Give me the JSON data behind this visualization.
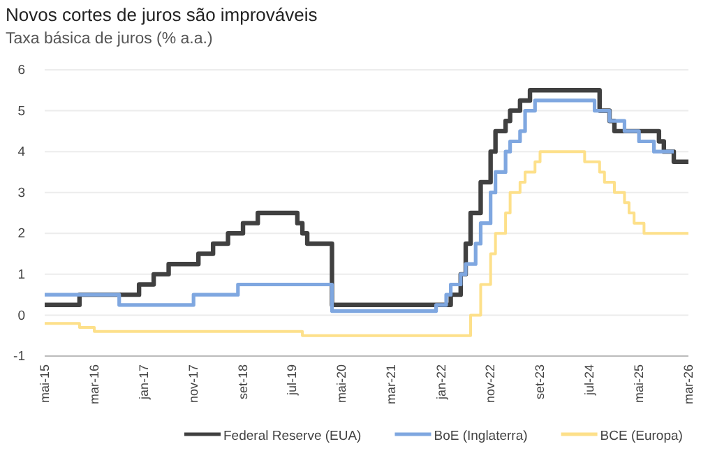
{
  "chart_data": {
    "type": "step",
    "title": "Novos cortes de juros são improváveis",
    "subtitle": "Taxa básica de juros (% a.a.)",
    "xlim": [
      "2015-05",
      "2026-03"
    ],
    "xticks": [
      {
        "value": "2015-05",
        "label": "mai-15"
      },
      {
        "value": "2016-03",
        "label": "mar-16"
      },
      {
        "value": "2017-01",
        "label": "jan-17"
      },
      {
        "value": "2017-11",
        "label": "nov-17"
      },
      {
        "value": "2018-09",
        "label": "set-18"
      },
      {
        "value": "2019-07",
        "label": "jul-19"
      },
      {
        "value": "2020-05",
        "label": "mai-20"
      },
      {
        "value": "2021-03",
        "label": "mar-21"
      },
      {
        "value": "2022-01",
        "label": "jan-22"
      },
      {
        "value": "2022-11",
        "label": "nov-22"
      },
      {
        "value": "2023-09",
        "label": "set-23"
      },
      {
        "value": "2024-07",
        "label": "jul-24"
      },
      {
        "value": "2025-05",
        "label": "mai-25"
      },
      {
        "value": "2026-03",
        "label": "mar-26"
      }
    ],
    "ylim": [
      -1,
      6
    ],
    "yticks": [
      -1,
      0,
      1,
      2,
      3,
      4,
      5,
      6
    ],
    "grid": "y",
    "legend": "bottom",
    "line_style": "solid",
    "marker": "none",
    "series": [
      {
        "name": "Federal Reserve (EUA)",
        "color": "#404040",
        "x": [
          "2015-05",
          "2015-12",
          "2016-12",
          "2017-03",
          "2017-06",
          "2017-12",
          "2018-03",
          "2018-06",
          "2018-09",
          "2018-12",
          "2019-08",
          "2019-09",
          "2019-10",
          "2020-03",
          "2020-03",
          "2022-03",
          "2022-05",
          "2022-06",
          "2022-07",
          "2022-09",
          "2022-11",
          "2022-12",
          "2023-02",
          "2023-03",
          "2023-05",
          "2023-07",
          "2024-09",
          "2024-11",
          "2024-12",
          "2025-09",
          "2025-10",
          "2025-12",
          "2026-03"
        ],
        "values": [
          0.25,
          0.5,
          0.75,
          1,
          1.25,
          1.5,
          1.75,
          2,
          2.25,
          2.5,
          2.25,
          2,
          1.75,
          1.25,
          0.25,
          0.5,
          1,
          1.75,
          2.5,
          3.25,
          4,
          4.5,
          4.75,
          5,
          5.25,
          5.5,
          5,
          4.75,
          4.5,
          4.25,
          4,
          3.75,
          3.75
        ]
      },
      {
        "name": "BoE (Inglaterra)",
        "color": "#7fa7e0",
        "x": [
          "2015-05",
          "2016-08",
          "2017-11",
          "2018-08",
          "2020-03",
          "2021-12",
          "2022-02",
          "2022-03",
          "2022-05",
          "2022-06",
          "2022-08",
          "2022-09",
          "2022-11",
          "2022-12",
          "2023-02",
          "2023-03",
          "2023-05",
          "2023-06",
          "2023-08",
          "2024-08",
          "2024-11",
          "2025-02",
          "2025-05",
          "2025-08",
          "2025-12"
        ],
        "values": [
          0.5,
          0.25,
          0.5,
          0.75,
          0.1,
          0.25,
          0.5,
          0.75,
          1,
          1.25,
          1.75,
          2.25,
          3,
          3.5,
          4,
          4.25,
          4.5,
          5,
          5.25,
          5,
          4.75,
          4.5,
          4.25,
          4,
          4
        ]
      },
      {
        "name": "BCE (Europa)",
        "color": "#fde08a",
        "x": [
          "2015-05",
          "2015-12",
          "2016-03",
          "2019-09",
          "2022-07",
          "2022-09",
          "2022-11",
          "2022-12",
          "2023-02",
          "2023-03",
          "2023-05",
          "2023-06",
          "2023-08",
          "2023-09",
          "2024-06",
          "2024-09",
          "2024-10",
          "2024-12",
          "2025-02",
          "2025-03",
          "2025-04",
          "2025-06",
          "2026-03"
        ],
        "values": [
          -0.2,
          -0.3,
          -0.4,
          -0.5,
          0,
          0.75,
          1.5,
          2,
          2.5,
          3,
          3.25,
          3.5,
          3.75,
          4,
          3.75,
          3.5,
          3.25,
          3,
          2.75,
          2.5,
          2.25,
          2,
          2
        ]
      }
    ]
  }
}
